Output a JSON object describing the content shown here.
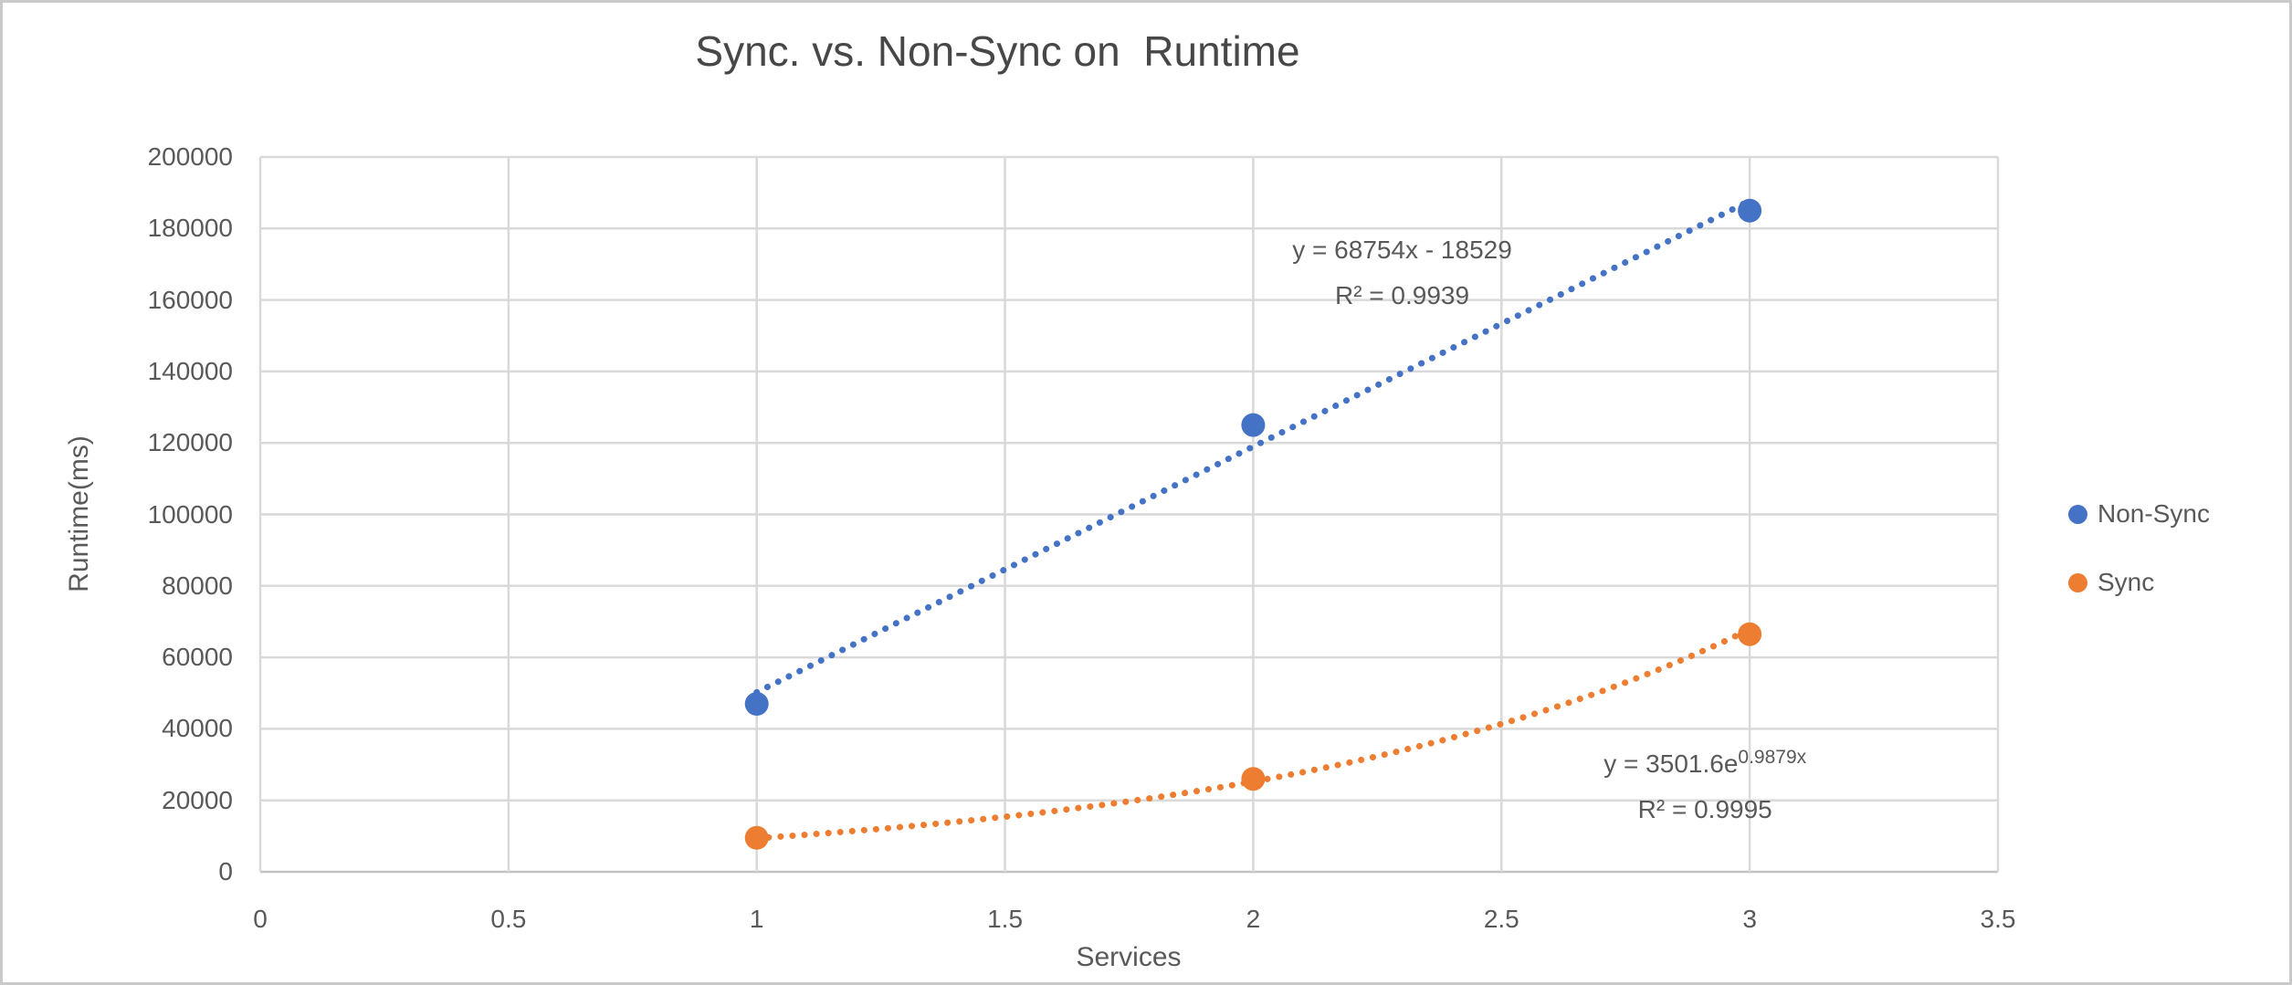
{
  "window": {
    "background": "#ffffff",
    "border_color": "#c9c9c9",
    "text_color": "#595959",
    "gridline_color": "#d9d9d9",
    "axis_line_color": "#c2c2c2"
  },
  "chart_data": {
    "type": "scatter",
    "title": "Sync. vs. Non-Sync on  Runtime",
    "xlabel": "Services",
    "ylabel": "Runtime(ms)",
    "xlim": [
      0,
      3.5
    ],
    "ylim": [
      0,
      200000
    ],
    "xticks": [
      0,
      0.5,
      1,
      1.5,
      2,
      2.5,
      3,
      3.5
    ],
    "yticks": [
      0,
      20000,
      40000,
      60000,
      80000,
      100000,
      120000,
      140000,
      160000,
      180000,
      200000
    ],
    "grid": true,
    "legend_position": "right",
    "series": [
      {
        "name": "Non-Sync",
        "color": "#4472C4",
        "marker": "circle",
        "x": [
          1,
          2,
          3
        ],
        "y": [
          47000,
          125000,
          185000
        ],
        "trendline": {
          "type": "linear",
          "slope": 68754,
          "intercept": -18529,
          "range": [
            1,
            3
          ],
          "style": "dotted",
          "equation": "y = 68754x - 18529",
          "r2": "R² = 0.9939",
          "label_x": 2.3,
          "label_y": 174000
        }
      },
      {
        "name": "Sync",
        "color": "#ED7D31",
        "marker": "circle",
        "x": [
          1,
          2,
          3
        ],
        "y": [
          9500,
          26000,
          66500
        ],
        "trendline": {
          "type": "exponential",
          "a": 3501.6,
          "b": 0.9879,
          "range": [
            1,
            3
          ],
          "style": "dotted",
          "equation_base": "y = 3501.6e",
          "equation_sup": "0.9879x",
          "r2": "R² = 0.9995",
          "label_x": 2.91,
          "label_y": 32000
        }
      }
    ]
  }
}
